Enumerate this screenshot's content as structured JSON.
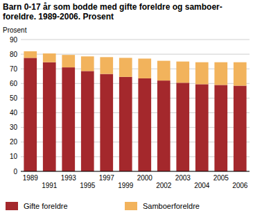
{
  "chart_data": {
    "type": "bar",
    "stacked": true,
    "title": "Barn 0-17 år som bodde med gifte foreldre og samboer-\nforeldre. 1989-2006. Prosent",
    "y_label": "Prosent",
    "categories": [
      "1989",
      "1991",
      "1993",
      "1995",
      "1997",
      "1999",
      "2000",
      "2002",
      "2003",
      "2004",
      "2005",
      "2006"
    ],
    "series": [
      {
        "name": "Gifte foreldre",
        "color": "#a4282c",
        "values": [
          77.5,
          74.5,
          71,
          68.5,
          66.5,
          64.5,
          63.5,
          62,
          60.5,
          59.5,
          59,
          58.5
        ]
      },
      {
        "name": "Samboerforeldre",
        "color": "#f2b35c",
        "values": [
          4.5,
          6,
          8.5,
          10,
          11.5,
          13,
          13.5,
          13.5,
          14.5,
          15,
          15.5,
          16
        ]
      }
    ],
    "ylim": [
      0,
      90
    ],
    "yticks": [
      0,
      10,
      20,
      30,
      40,
      50,
      60,
      70,
      80,
      90
    ],
    "grid": true,
    "legend": "bottom"
  }
}
